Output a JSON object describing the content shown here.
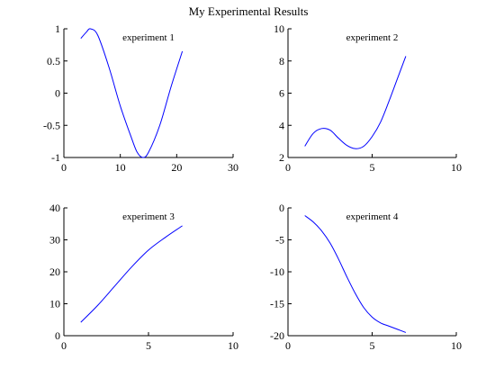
{
  "figure": {
    "title": "My Experimental Results"
  },
  "colors": {
    "line": "#0000ff",
    "axis": "#000000",
    "background": "#ffffff"
  },
  "chart_data": [
    {
      "type": "line",
      "title": "experiment 1",
      "xlabel": "",
      "ylabel": "",
      "xlim": [
        0,
        30
      ],
      "ylim": [
        -1,
        1
      ],
      "xticks": [
        "0",
        "10",
        "20",
        "30"
      ],
      "yticks": [
        "-1",
        "-0.5",
        "0",
        "0.5",
        "1"
      ],
      "grid": false,
      "series": [
        {
          "x": [
            3,
            4,
            4.7,
            6,
            8,
            10,
            12,
            13,
            14,
            15,
            17,
            19,
            21
          ],
          "y": [
            0.85,
            0.95,
            1.0,
            0.9,
            0.4,
            -0.2,
            -0.7,
            -0.92,
            -1.0,
            -0.92,
            -0.5,
            0.1,
            0.65
          ]
        }
      ]
    },
    {
      "type": "line",
      "title": "experiment 2",
      "xlabel": "",
      "ylabel": "",
      "xlim": [
        0,
        10
      ],
      "ylim": [
        2,
        10
      ],
      "xticks": [
        "0",
        "5",
        "10"
      ],
      "yticks": [
        "2",
        "4",
        "6",
        "8",
        "10"
      ],
      "grid": false,
      "series": [
        {
          "x": [
            1,
            1.5,
            2,
            2.5,
            3,
            3.5,
            4,
            4.5,
            5,
            5.5,
            6,
            6.5,
            7
          ],
          "y": [
            2.7,
            3.5,
            3.8,
            3.7,
            3.2,
            2.75,
            2.55,
            2.7,
            3.3,
            4.2,
            5.5,
            6.9,
            8.3
          ]
        }
      ]
    },
    {
      "type": "line",
      "title": "experiment 3",
      "xlabel": "",
      "ylabel": "",
      "xlim": [
        0,
        10
      ],
      "ylim": [
        0,
        40
      ],
      "xticks": [
        "0",
        "5",
        "10"
      ],
      "yticks": [
        "0",
        "10",
        "20",
        "30",
        "40"
      ],
      "grid": false,
      "series": [
        {
          "x": [
            1,
            2,
            3,
            4,
            5,
            6,
            7
          ],
          "y": [
            4.2,
            9.5,
            15.5,
            21.5,
            26.8,
            30.8,
            34.4
          ]
        }
      ]
    },
    {
      "type": "line",
      "title": "experiment 4",
      "xlabel": "",
      "ylabel": "",
      "xlim": [
        0,
        10
      ],
      "ylim": [
        -20,
        0
      ],
      "xticks": [
        "0",
        "5",
        "10"
      ],
      "yticks": [
        "-20",
        "-15",
        "-10",
        "-5",
        "0"
      ],
      "grid": false,
      "series": [
        {
          "x": [
            1,
            1.5,
            2,
            2.5,
            3,
            3.5,
            4,
            4.5,
            5,
            5.5,
            6,
            6.5,
            7
          ],
          "y": [
            -1.2,
            -2.2,
            -3.6,
            -5.5,
            -8.0,
            -10.8,
            -13.4,
            -15.6,
            -17.1,
            -18.0,
            -18.5,
            -19.0,
            -19.5
          ]
        }
      ]
    }
  ]
}
